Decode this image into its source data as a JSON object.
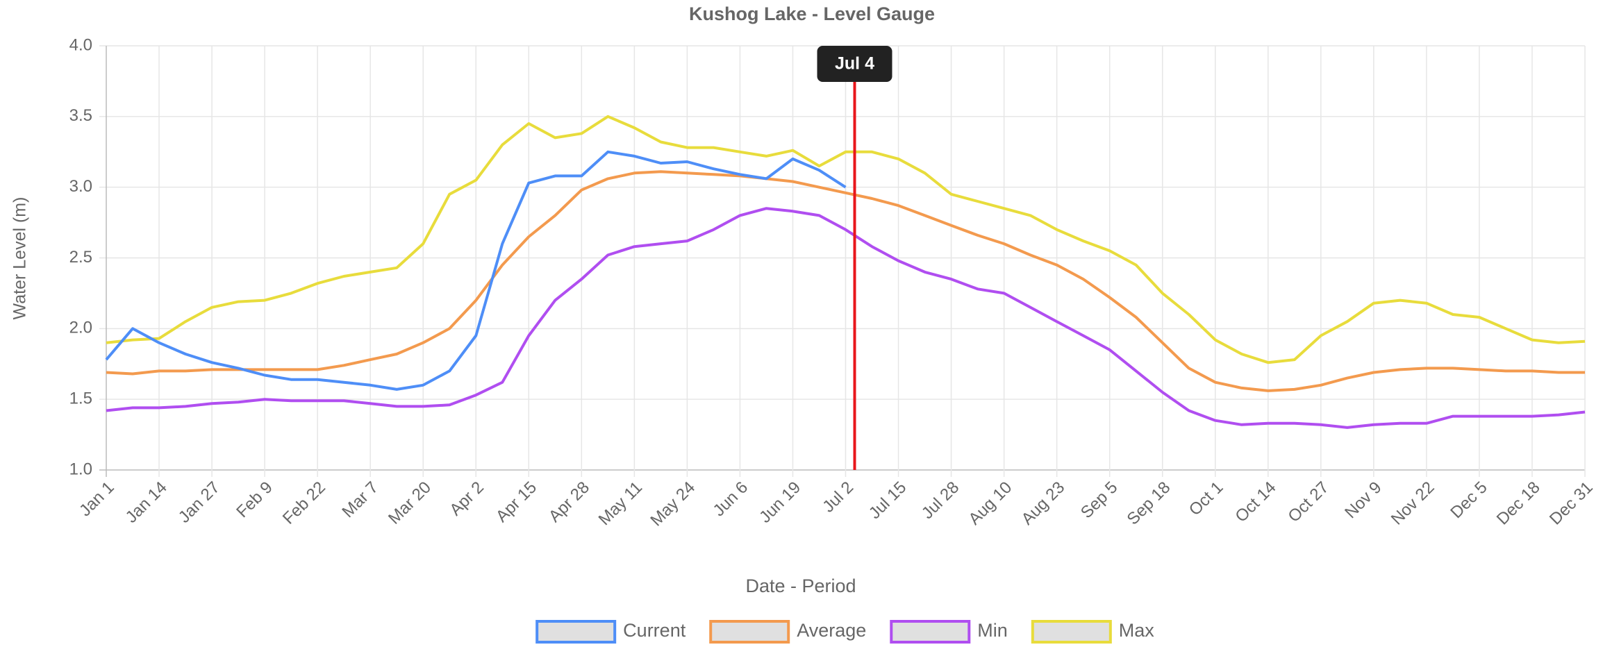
{
  "chart_data": {
    "type": "line",
    "title": "Kushog Lake - Level Gauge",
    "x_label": "Date - Period",
    "y_label": "Water Level (m)",
    "categories": [
      "Jan 1",
      null,
      "Jan 14",
      null,
      "Jan 27",
      null,
      "Feb 9",
      null,
      "Feb 22",
      null,
      "Mar 7",
      null,
      "Mar 20",
      null,
      "Apr 2",
      null,
      "Apr 15",
      null,
      "Apr 28",
      null,
      "May 11",
      null,
      "May 24",
      null,
      "Jun 6",
      null,
      "Jun 19",
      null,
      "Jul 2",
      null,
      "Jul 15",
      null,
      "Jul 28",
      null,
      "Aug 10",
      null,
      "Aug 23",
      null,
      "Sep 5",
      null,
      "Sep 18",
      null,
      "Oct 1",
      null,
      "Oct 14",
      null,
      "Oct 27",
      null,
      "Nov 9",
      null,
      "Nov 22",
      null,
      "Dec 5",
      null,
      "Dec 18",
      null,
      "Dec 31"
    ],
    "series": [
      {
        "name": "Current",
        "color": "#4e8ef7",
        "values": [
          1.78,
          2.0,
          1.9,
          1.82,
          1.76,
          1.72,
          1.67,
          1.64,
          1.64,
          1.62,
          1.6,
          1.57,
          1.6,
          1.7,
          1.95,
          2.6,
          3.03,
          3.08,
          3.08,
          3.25,
          3.22,
          3.17,
          3.18,
          3.13,
          3.09,
          3.06,
          3.2,
          3.12,
          3.0,
          null,
          null,
          null,
          null,
          null,
          null,
          null,
          null,
          null,
          null,
          null,
          null,
          null,
          null,
          null,
          null,
          null,
          null,
          null,
          null,
          null,
          null,
          null,
          null,
          null,
          null,
          null,
          null
        ]
      },
      {
        "name": "Average",
        "color": "#f39a4e",
        "values": [
          1.69,
          1.68,
          1.7,
          1.7,
          1.71,
          1.71,
          1.71,
          1.71,
          1.71,
          1.74,
          1.78,
          1.82,
          1.9,
          2.0,
          2.2,
          2.45,
          2.65,
          2.8,
          2.98,
          3.06,
          3.1,
          3.11,
          3.1,
          3.09,
          3.08,
          3.06,
          3.04,
          3.0,
          2.96,
          2.92,
          2.87,
          2.8,
          2.73,
          2.66,
          2.6,
          2.52,
          2.45,
          2.35,
          2.22,
          2.08,
          1.9,
          1.72,
          1.62,
          1.58,
          1.56,
          1.57,
          1.6,
          1.65,
          1.69,
          1.71,
          1.72,
          1.72,
          1.71,
          1.7,
          1.7,
          1.69,
          1.69
        ]
      },
      {
        "name": "Min",
        "color": "#b04ef0",
        "values": [
          1.42,
          1.44,
          1.44,
          1.45,
          1.47,
          1.48,
          1.5,
          1.49,
          1.49,
          1.49,
          1.47,
          1.45,
          1.45,
          1.46,
          1.53,
          1.62,
          1.95,
          2.2,
          2.35,
          2.52,
          2.58,
          2.6,
          2.62,
          2.7,
          2.8,
          2.85,
          2.83,
          2.8,
          2.7,
          2.58,
          2.48,
          2.4,
          2.35,
          2.28,
          2.25,
          2.15,
          2.05,
          1.95,
          1.85,
          1.7,
          1.55,
          1.42,
          1.35,
          1.32,
          1.33,
          1.33,
          1.32,
          1.3,
          1.32,
          1.33,
          1.33,
          1.38,
          1.38,
          1.38,
          1.38,
          1.39,
          1.41
        ]
      },
      {
        "name": "Max",
        "color": "#e8dc3c",
        "values": [
          1.9,
          1.92,
          1.93,
          2.05,
          2.15,
          2.19,
          2.2,
          2.25,
          2.32,
          2.37,
          2.4,
          2.43,
          2.6,
          2.95,
          3.05,
          3.3,
          3.45,
          3.35,
          3.38,
          3.5,
          3.42,
          3.32,
          3.28,
          3.28,
          3.25,
          3.22,
          3.26,
          3.15,
          3.25,
          3.25,
          3.2,
          3.1,
          2.95,
          2.9,
          2.85,
          2.8,
          2.7,
          2.62,
          2.55,
          2.45,
          2.25,
          2.1,
          1.92,
          1.82,
          1.76,
          1.78,
          1.95,
          2.05,
          2.18,
          2.2,
          2.18,
          2.1,
          2.08,
          2.0,
          1.92,
          1.9,
          1.91
        ]
      }
    ],
    "marker": {
      "label": "Jul 4",
      "color": "#e8161b"
    },
    "ylim": [
      1.0,
      4.0
    ],
    "yticks": [
      {
        "value": 1.0,
        "label": "1.0"
      },
      {
        "value": 1.5,
        "label": "1.5"
      },
      {
        "value": 2.0,
        "label": "2.0"
      },
      {
        "value": 2.5,
        "label": "2.5"
      },
      {
        "value": 3.0,
        "label": "3.0"
      },
      {
        "value": 3.5,
        "label": "3.5"
      },
      {
        "value": 4.0,
        "label": "4.0"
      }
    ],
    "grid": true,
    "legend": "bottom"
  }
}
